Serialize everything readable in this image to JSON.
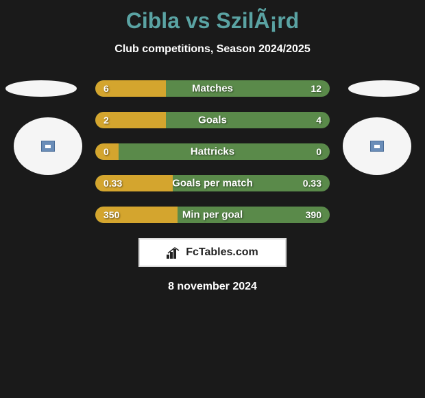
{
  "title": "Cibla vs SzilÃ¡rd",
  "subtitle": "Club competitions, Season 2024/2025",
  "colors": {
    "background": "#1a1a1a",
    "title": "#5aa3a3",
    "bar_right": "#5a8a4a",
    "bar_left": "#d4a52e",
    "badge_fill": "#6a8db8"
  },
  "stats": [
    {
      "label": "Matches",
      "left_value": "6",
      "right_value": "12",
      "left_pct": 30
    },
    {
      "label": "Goals",
      "left_value": "2",
      "right_value": "4",
      "left_pct": 30
    },
    {
      "label": "Hattricks",
      "left_value": "0",
      "right_value": "0",
      "left_pct": 10
    },
    {
      "label": "Goals per match",
      "left_value": "0.33",
      "right_value": "0.33",
      "left_pct": 33
    },
    {
      "label": "Min per goal",
      "left_value": "350",
      "right_value": "390",
      "left_pct": 35
    }
  ],
  "brand": "FcTables.com",
  "date": "8 november 2024"
}
